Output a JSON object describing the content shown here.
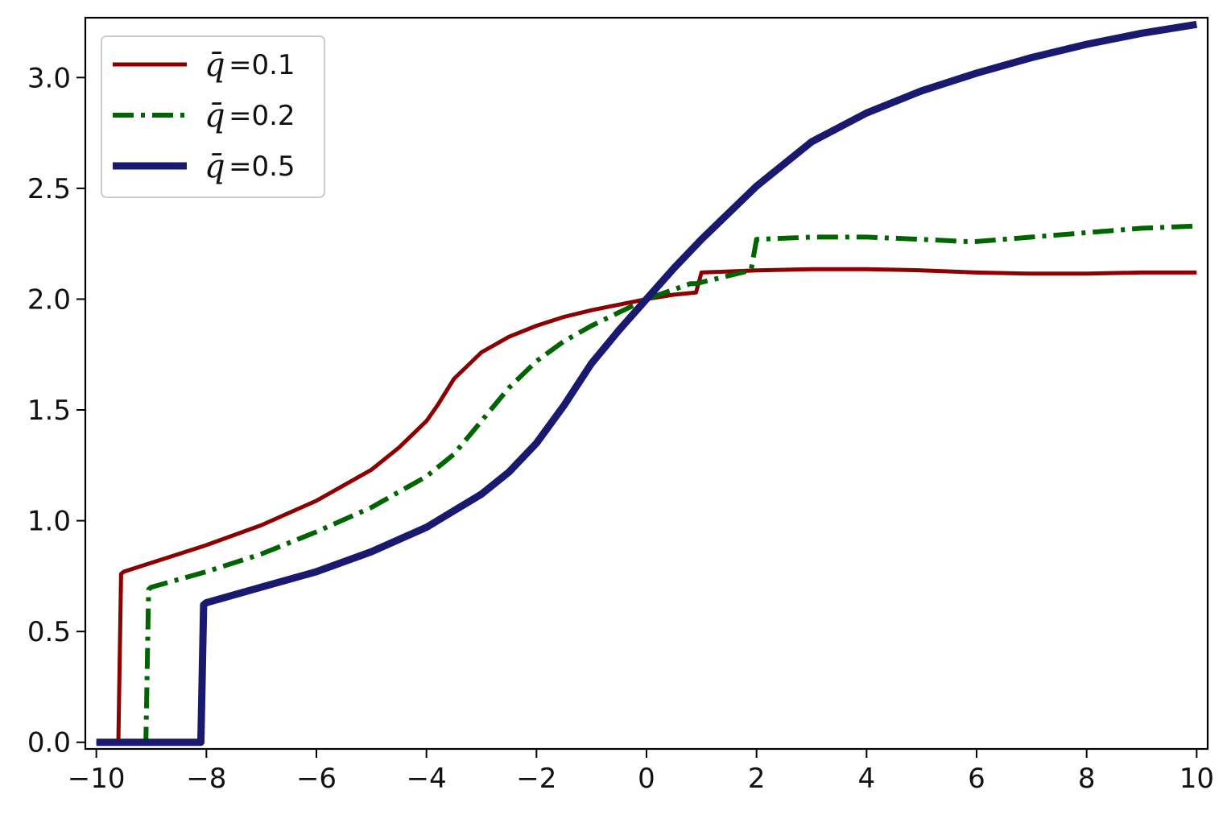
{
  "chart_data": {
    "type": "line",
    "title": "",
    "xlabel": "",
    "ylabel": "",
    "xlim": [
      -10.2,
      10.2
    ],
    "ylim": [
      -0.03,
      3.27
    ],
    "xticks": [
      -10,
      -8,
      -6,
      -4,
      -2,
      0,
      2,
      4,
      6,
      8,
      10
    ],
    "yticks": [
      0.0,
      0.5,
      1.0,
      1.5,
      2.0,
      2.5,
      3.0
    ],
    "xtick_labels": [
      "−10",
      "−8",
      "−6",
      "−4",
      "−2",
      "0",
      "2",
      "4",
      "6",
      "8",
      "10"
    ],
    "ytick_labels": [
      "0.0",
      "0.5",
      "1.0",
      "1.5",
      "2.0",
      "2.5",
      "3.0"
    ],
    "grid": false,
    "legend_position": "top-left",
    "series": [
      {
        "name": "q̄=0.1",
        "legend_symbol": "q̄",
        "legend_value": "=0.1",
        "color": "#8b0000",
        "style": "solid",
        "x": [
          -10,
          -9.6,
          -9.55,
          -9.5,
          -9,
          -8,
          -7,
          -6,
          -5,
          -4.5,
          -4,
          -3.8,
          -3.5,
          -3,
          -2.5,
          -2,
          -1.5,
          -1,
          0,
          0.5,
          0.9,
          1.0,
          2,
          3,
          4,
          5,
          6,
          7,
          7.5,
          8,
          9,
          10
        ],
        "y": [
          0,
          0,
          0.76,
          0.77,
          0.81,
          0.89,
          0.98,
          1.09,
          1.23,
          1.33,
          1.45,
          1.52,
          1.64,
          1.76,
          1.83,
          1.88,
          1.92,
          1.95,
          2.0,
          2.02,
          2.03,
          2.12,
          2.13,
          2.135,
          2.135,
          2.13,
          2.12,
          2.115,
          2.115,
          2.115,
          2.12,
          2.12
        ]
      },
      {
        "name": "q̄=0.2",
        "legend_symbol": "q̄",
        "legend_value": "=0.2",
        "color": "#006400",
        "style": "dashdot",
        "x": [
          -9.2,
          -9.1,
          -9.05,
          -9,
          -8,
          -7,
          -6,
          -5,
          -4,
          -3.5,
          -3,
          -2.5,
          -2,
          -1.5,
          -1,
          0,
          0.8,
          0.9,
          1.9,
          2.0,
          3,
          4,
          5,
          5.8,
          6,
          7,
          8,
          9,
          10
        ],
        "y": [
          0,
          0,
          0.69,
          0.7,
          0.77,
          0.85,
          0.95,
          1.06,
          1.2,
          1.3,
          1.45,
          1.6,
          1.72,
          1.81,
          1.88,
          2.0,
          2.07,
          2.07,
          2.13,
          2.27,
          2.28,
          2.28,
          2.27,
          2.26,
          2.26,
          2.28,
          2.3,
          2.32,
          2.33
        ]
      },
      {
        "name": "q̄=0.5",
        "legend_symbol": "q̄",
        "legend_value": "=0.5",
        "color": "#191970",
        "style": "solid",
        "x": [
          -10,
          -8.1,
          -8.05,
          -8,
          -7,
          -6,
          -5,
          -4,
          -3,
          -2.5,
          -2,
          -1.5,
          -1,
          -0.5,
          0,
          0.5,
          1,
          1.5,
          2,
          3,
          4,
          5,
          6,
          7,
          8,
          9,
          10
        ],
        "y": [
          0,
          0,
          0.62,
          0.63,
          0.7,
          0.77,
          0.86,
          0.97,
          1.12,
          1.22,
          1.35,
          1.52,
          1.71,
          1.86,
          2.0,
          2.14,
          2.27,
          2.39,
          2.51,
          2.71,
          2.84,
          2.94,
          3.02,
          3.09,
          3.15,
          3.2,
          3.24
        ]
      }
    ]
  }
}
